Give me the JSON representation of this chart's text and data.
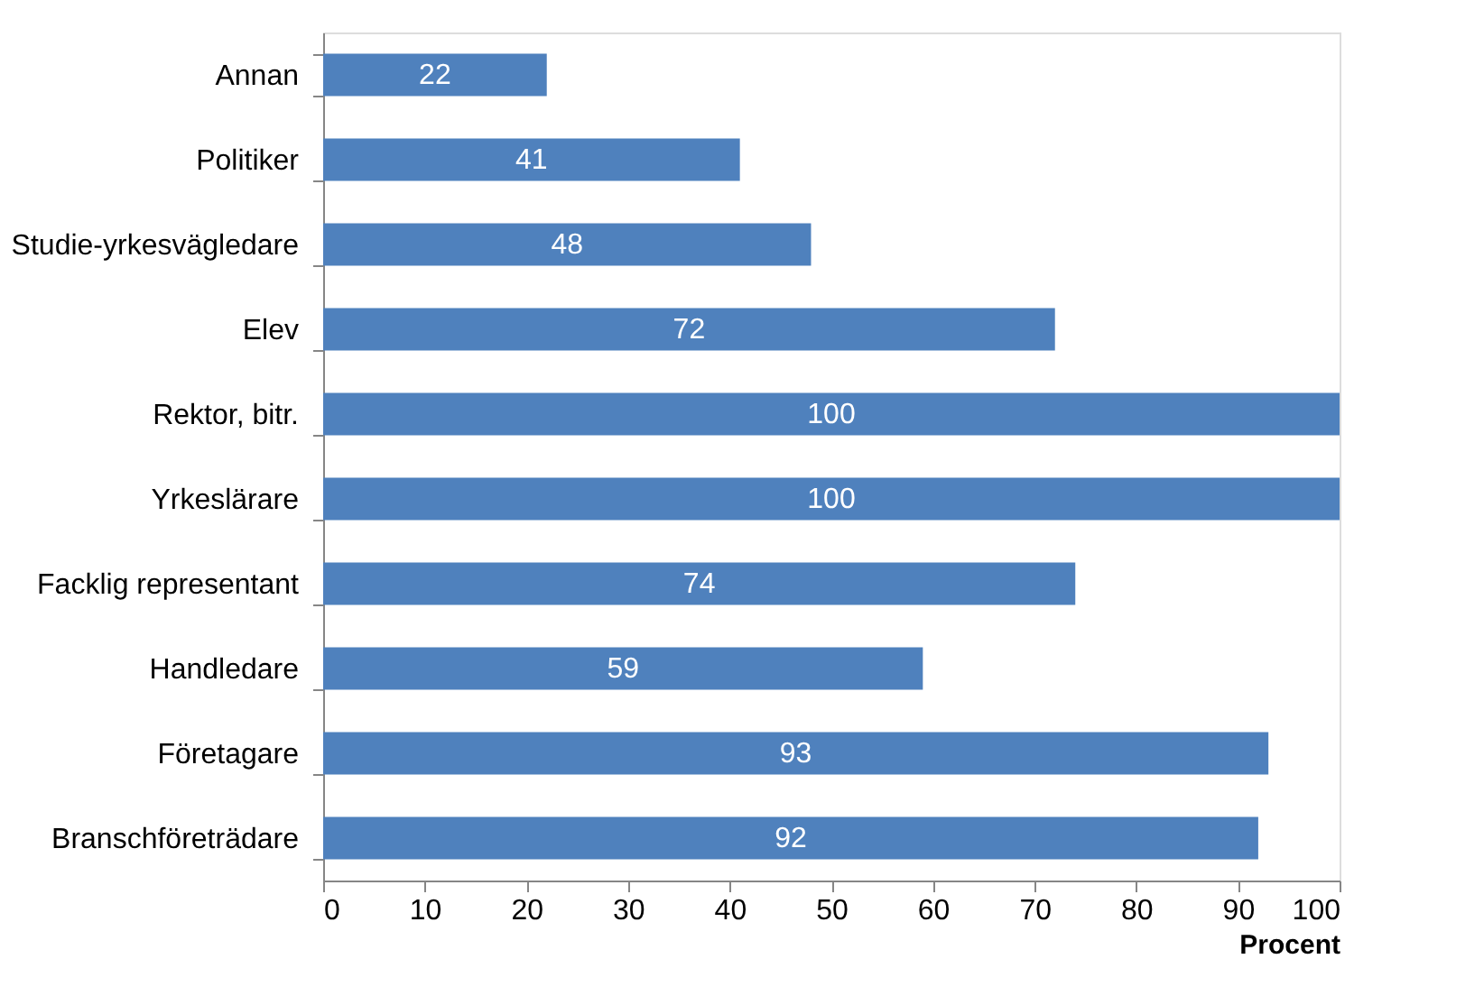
{
  "chart_data": {
    "type": "bar",
    "orientation": "horizontal",
    "xlabel": "Procent",
    "categories": [
      "Annan",
      "Politiker",
      "Studie-yrkesvägledare",
      "Elev",
      "Rektor, bitr.",
      "Yrkeslärare",
      "Facklig representant",
      "Handledare",
      "Företagare",
      "Branschföreträdare"
    ],
    "values": [
      22,
      41,
      48,
      72,
      100,
      100,
      74,
      59,
      93,
      92
    ],
    "color": "#4f81bd",
    "data_labels": true,
    "grid": false,
    "xlim": [
      0,
      100
    ],
    "xticks": [
      0,
      10,
      20,
      30,
      40,
      50,
      60,
      70,
      80,
      90,
      100
    ]
  }
}
